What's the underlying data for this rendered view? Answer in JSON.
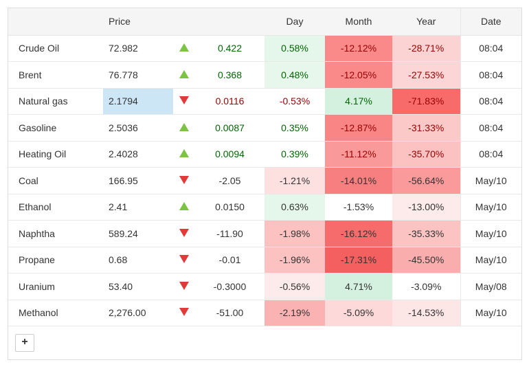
{
  "header": {
    "name": "",
    "price": "Price",
    "arrow": "",
    "change": "",
    "day": "Day",
    "month": "Month",
    "year": "Year",
    "date": "Date"
  },
  "rows": [
    {
      "name": "Crude Oil",
      "price": "72.982",
      "dir": "up",
      "change": "0.422",
      "day": "0.58%",
      "month": "-12.12%",
      "year": "-28.71%",
      "date": "08:04",
      "price_bg": "",
      "day_bg": "#e5f7ea",
      "month_bg": "#fa8a8a",
      "year_bg": "#fcd3d3",
      "change_cls": "up",
      "day_cls": "up",
      "month_cls": "down",
      "year_cls": "down"
    },
    {
      "name": "Brent",
      "price": "76.778",
      "dir": "up",
      "change": "0.368",
      "day": "0.48%",
      "month": "-12.05%",
      "year": "-27.53%",
      "date": "08:04",
      "price_bg": "",
      "day_bg": "#e8f7ec",
      "month_bg": "#fa8a8a",
      "year_bg": "#fcd6d6",
      "change_cls": "up",
      "day_cls": "up",
      "month_cls": "down",
      "year_cls": "down"
    },
    {
      "name": "Natural gas",
      "price": "2.1794",
      "dir": "down",
      "change": "0.0116",
      "day": "-0.53%",
      "month": "4.17%",
      "year": "-71.83%",
      "date": "08:04",
      "price_bg": "#cce6f6",
      "day_bg": "",
      "month_bg": "#d3f1de",
      "year_bg": "#f86b6b",
      "change_cls": "down",
      "day_cls": "down",
      "month_cls": "up",
      "year_cls": "down"
    },
    {
      "name": "Gasoline",
      "price": "2.5036",
      "dir": "up",
      "change": "0.0087",
      "day": "0.35%",
      "month": "-12.87%",
      "year": "-31.33%",
      "date": "08:04",
      "price_bg": "",
      "day_bg": "",
      "month_bg": "#f98585",
      "year_bg": "#fcc9c9",
      "change_cls": "up",
      "day_cls": "up",
      "month_cls": "down",
      "year_cls": "down"
    },
    {
      "name": "Heating Oil",
      "price": "2.4028",
      "dir": "up",
      "change": "0.0094",
      "day": "0.39%",
      "month": "-11.12%",
      "year": "-35.70%",
      "date": "08:04",
      "price_bg": "",
      "day_bg": "",
      "month_bg": "#fa9999",
      "year_bg": "#fcc2c2",
      "change_cls": "up",
      "day_cls": "up",
      "month_cls": "down",
      "year_cls": "down"
    },
    {
      "name": "Coal",
      "price": "166.95",
      "dir": "down",
      "change": "-2.05",
      "day": "-1.21%",
      "month": "-14.01%",
      "year": "-56.64%",
      "date": "May/10",
      "price_bg": "",
      "day_bg": "#fde0e0",
      "month_bg": "#f87f7f",
      "year_bg": "#fa9a9a",
      "change_cls": "neu",
      "day_cls": "neu",
      "month_cls": "neu",
      "year_cls": "neu"
    },
    {
      "name": "Ethanol",
      "price": "2.41",
      "dir": "up",
      "change": "0.0150",
      "day": "0.63%",
      "month": "-1.53%",
      "year": "-13.00%",
      "date": "May/10",
      "price_bg": "",
      "day_bg": "#e5f7ea",
      "month_bg": "",
      "year_bg": "#fdeaea",
      "change_cls": "neu",
      "day_cls": "neu",
      "month_cls": "neu",
      "year_cls": "neu"
    },
    {
      "name": "Naphtha",
      "price": "589.24",
      "dir": "down",
      "change": "-11.90",
      "day": "-1.98%",
      "month": "-16.12%",
      "year": "-35.33%",
      "date": "May/10",
      "price_bg": "",
      "day_bg": "#fcc2c2",
      "month_bg": "#f66b6b",
      "year_bg": "#fcc3c3",
      "change_cls": "neu",
      "day_cls": "neu",
      "month_cls": "neu",
      "year_cls": "neu"
    },
    {
      "name": "Propane",
      "price": "0.68",
      "dir": "down",
      "change": "-0.01",
      "day": "-1.96%",
      "month": "-17.31%",
      "year": "-45.50%",
      "date": "May/10",
      "price_bg": "",
      "day_bg": "#fcc2c2",
      "month_bg": "#f45f5f",
      "year_bg": "#faadad",
      "change_cls": "neu",
      "day_cls": "neu",
      "month_cls": "neu",
      "year_cls": "neu"
    },
    {
      "name": "Uranium",
      "price": "53.40",
      "dir": "down",
      "change": "-0.3000",
      "day": "-0.56%",
      "month": "4.71%",
      "year": "-3.09%",
      "date": "May/08",
      "price_bg": "",
      "day_bg": "#fdeaea",
      "month_bg": "#d3f1de",
      "year_bg": "",
      "change_cls": "neu",
      "day_cls": "neu",
      "month_cls": "neu",
      "year_cls": "neu"
    },
    {
      "name": "Methanol",
      "price": "2,276.00",
      "dir": "down",
      "change": "-51.00",
      "day": "-2.19%",
      "month": "-5.09%",
      "year": "-14.53%",
      "date": "May/10",
      "price_bg": "",
      "day_bg": "#fbb2b2",
      "month_bg": "#fdd9d9",
      "year_bg": "#fde6e6",
      "change_cls": "neu",
      "day_cls": "neu",
      "month_cls": "neu",
      "year_cls": "neu"
    }
  ],
  "add_button": {
    "label": "+"
  }
}
